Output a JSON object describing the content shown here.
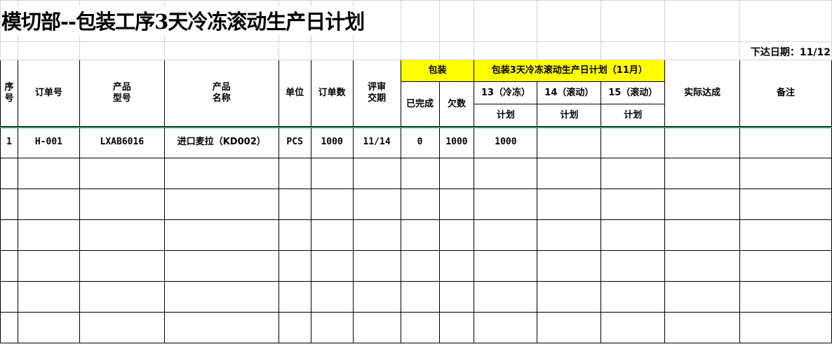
{
  "title": "模切部--包装工序3天冷冻滚动生产日计划",
  "issue_date": "下达日期：11/12",
  "headers": {
    "seq": "序\n号",
    "order_no": "订单号",
    "model": "产品\n型号",
    "name": "产品\n名称",
    "unit": "单位",
    "qty": "订单数",
    "due": "评审\n交期",
    "pack": "包装",
    "plan_group": "包装3天冷冻滚动生产日计划（11月）",
    "done": "已完成",
    "owed": "欠数",
    "day13": "13（冷冻）",
    "day14": "14（滚动）",
    "day15": "15（滚动）",
    "plan": "计划",
    "actual": "实际达成",
    "remark": "备注"
  },
  "rows": [
    [
      "1",
      "H-001",
      "LXAB6016",
      "进口麦拉（KD002）",
      "PCS",
      "1000",
      "11/14",
      "0",
      "1000",
      "1000",
      "",
      "",
      "",
      ""
    ],
    [
      "",
      "",
      "",
      "",
      "",
      "",
      "",
      "",
      "",
      "",
      "",
      "",
      "",
      ""
    ],
    [
      "",
      "",
      "",
      "",
      "",
      "",
      "",
      "",
      "",
      "",
      "",
      "",
      "",
      ""
    ],
    [
      "",
      "",
      "",
      "",
      "",
      "",
      "",
      "",
      "",
      "",
      "",
      "",
      "",
      ""
    ],
    [
      "",
      "",
      "",
      "",
      "",
      "",
      "",
      "",
      "",
      "",
      "",
      "",
      "",
      ""
    ],
    [
      "",
      "",
      "",
      "",
      "",
      "",
      "",
      "",
      "",
      "",
      "",
      "",
      "",
      ""
    ],
    [
      "",
      "",
      "",
      "",
      "",
      "",
      "",
      "",
      "",
      "",
      "",
      "",
      "",
      ""
    ]
  ],
  "colors": {
    "header_highlight": "#ffff00",
    "selection_line": "#3c9f6c",
    "gridline": "#d4d4d4"
  }
}
